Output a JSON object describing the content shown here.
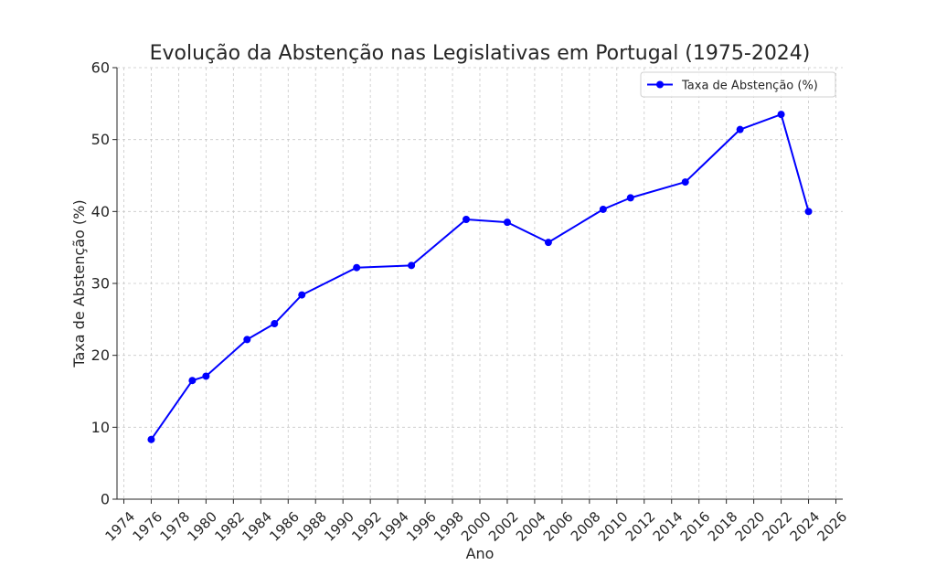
{
  "chart_data": {
    "type": "line",
    "title": "Evolução da Abstenção nas Legislativas em Portugal (1975-2024)",
    "xlabel": "Ano",
    "ylabel": "Taxa de Abstenção (%)",
    "xlim": [
      1973.5,
      2026.5
    ],
    "ylim": [
      0,
      60
    ],
    "xticks": [
      1974,
      1976,
      1978,
      1980,
      1982,
      1984,
      1986,
      1988,
      1990,
      1992,
      1994,
      1996,
      1998,
      2000,
      2002,
      2004,
      2006,
      2008,
      2010,
      2012,
      2014,
      2016,
      2018,
      2020,
      2022,
      2024,
      2026
    ],
    "yticks": [
      0,
      10,
      20,
      30,
      40,
      50,
      60
    ],
    "grid": true,
    "legend_position": "top-right",
    "series": [
      {
        "name": "Taxa de Abstenção (%)",
        "color": "#0000ff",
        "marker": "circle",
        "x": [
          1976,
          1979,
          1980,
          1983,
          1985,
          1987,
          1991,
          1995,
          1999,
          2002,
          2005,
          2009,
          2011,
          2015,
          2019,
          2022,
          2024
        ],
        "y": [
          8.3,
          16.5,
          17.1,
          22.2,
          24.4,
          28.4,
          32.2,
          32.5,
          38.9,
          38.5,
          35.7,
          40.3,
          41.9,
          44.1,
          51.4,
          53.5,
          40.0
        ]
      }
    ]
  }
}
